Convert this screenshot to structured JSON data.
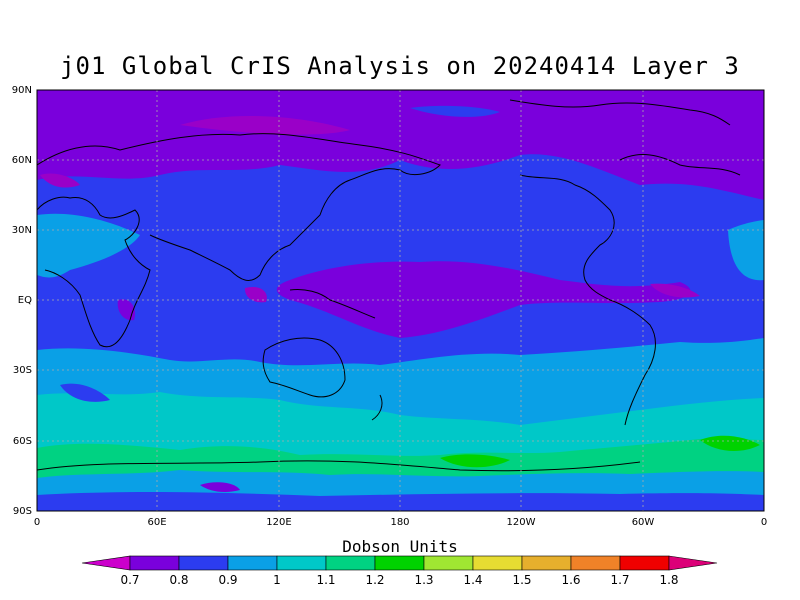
{
  "title": "j01 Global CrIS Analysis on 20240414 Layer 3",
  "map": {
    "lat_labels": [
      "90N",
      "60N",
      "30N",
      "EQ",
      "30S",
      "60S",
      "90S"
    ],
    "lon_labels": [
      "0",
      "60E",
      "120E",
      "180",
      "120W",
      "60W",
      "0"
    ],
    "grid": true
  },
  "colorbar": {
    "title": "Dobson Units",
    "ticks": [
      "0.7",
      "0.8",
      "0.9",
      "1",
      "1.1",
      "1.2",
      "1.3",
      "1.4",
      "1.5",
      "1.6",
      "1.7",
      "1.8"
    ],
    "colors": [
      "#cc00cc",
      "#7a00dc",
      "#2c3cf0",
      "#0aa0e6",
      "#00c8c8",
      "#00d282",
      "#00d200",
      "#a0e632",
      "#e6dc32",
      "#e6af2d",
      "#f08228",
      "#f00000",
      "#dc0078"
    ]
  },
  "chart_data": {
    "type": "heatmap",
    "title": "j01 Global CrIS Analysis on 20240414 Layer 3",
    "units": "Dobson Units",
    "x_range": [
      "0",
      "0"
    ],
    "y_range": [
      "90S",
      "90N"
    ],
    "value_range": [
      0.7,
      1.8
    ]
  }
}
